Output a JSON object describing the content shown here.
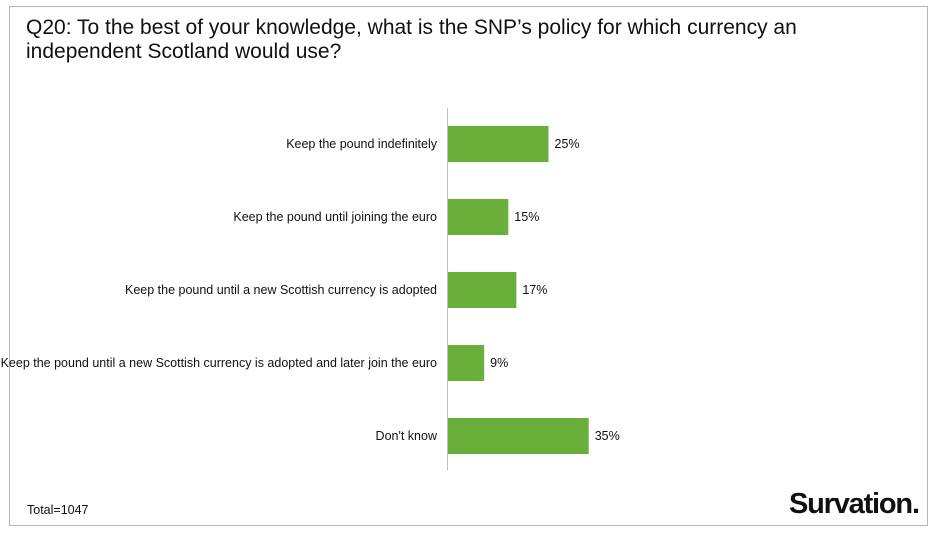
{
  "title": "Q20: To the best of your knowledge, what is the SNP’s policy for which currency an independent Scotland would use?",
  "footnote": "Total=1047",
  "logo_text": "Survation.",
  "colors": {
    "bar": "#6aaf3a",
    "axis": "#bfbfbf"
  },
  "chart_data": {
    "type": "bar",
    "orientation": "horizontal",
    "categories": [
      "Keep the pound indefinitely",
      "Keep the pound until joining the euro",
      "Keep the pound until a new Scottish currency is adopted",
      "Keep the pound until a new Scottish currency is adopted and later join the euro",
      "Don't know"
    ],
    "values": [
      25,
      15,
      17,
      9,
      35
    ],
    "value_labels": [
      "25%",
      "15%",
      "17%",
      "9%",
      "35%"
    ],
    "unit": "%",
    "xlim": [
      0,
      100
    ],
    "grid": false,
    "legend": "none"
  }
}
